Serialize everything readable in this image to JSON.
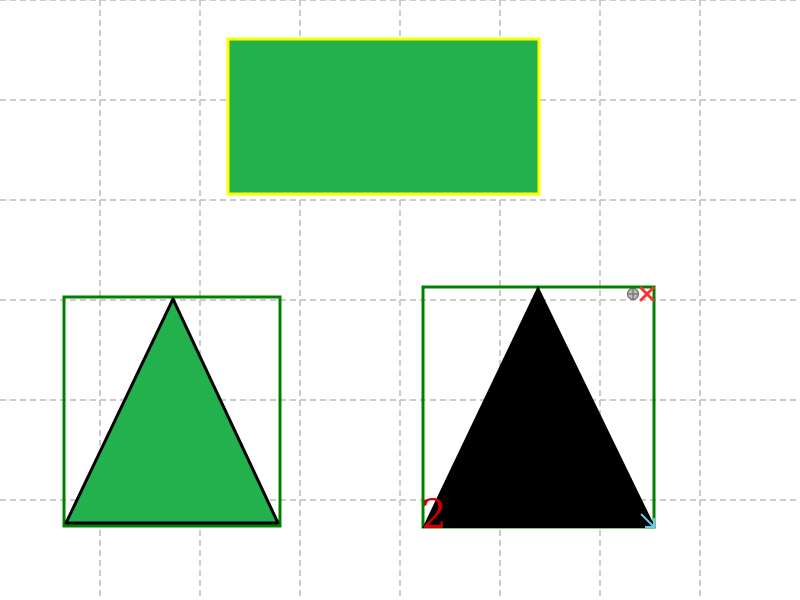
{
  "canvas": {
    "background": "#ffffff",
    "grid_color": "#bbbbbb",
    "grid_visible": true
  },
  "shapes": [
    {
      "id": "rect-1",
      "type": "rectangle",
      "fill": "#23b14d",
      "stroke": "#ffff00",
      "selected": false
    },
    {
      "id": "triangle-1",
      "type": "triangle",
      "fill": "#23b14d",
      "stroke": "#000000",
      "selected": true,
      "selection_color": "#008000"
    },
    {
      "id": "triangle-2",
      "type": "triangle",
      "fill": "#000000",
      "stroke": "#000000",
      "selected": true,
      "selection_color": "#008000",
      "badge": "2"
    }
  ],
  "handles": {
    "rotate_icon": "rotate-handle-icon",
    "delete_icon": "delete-x-icon",
    "resize_icon": "resize-arrow-icon",
    "delete_color": "#ff3333",
    "resize_color": "#66ccee",
    "badge_color": "#cc0000"
  }
}
